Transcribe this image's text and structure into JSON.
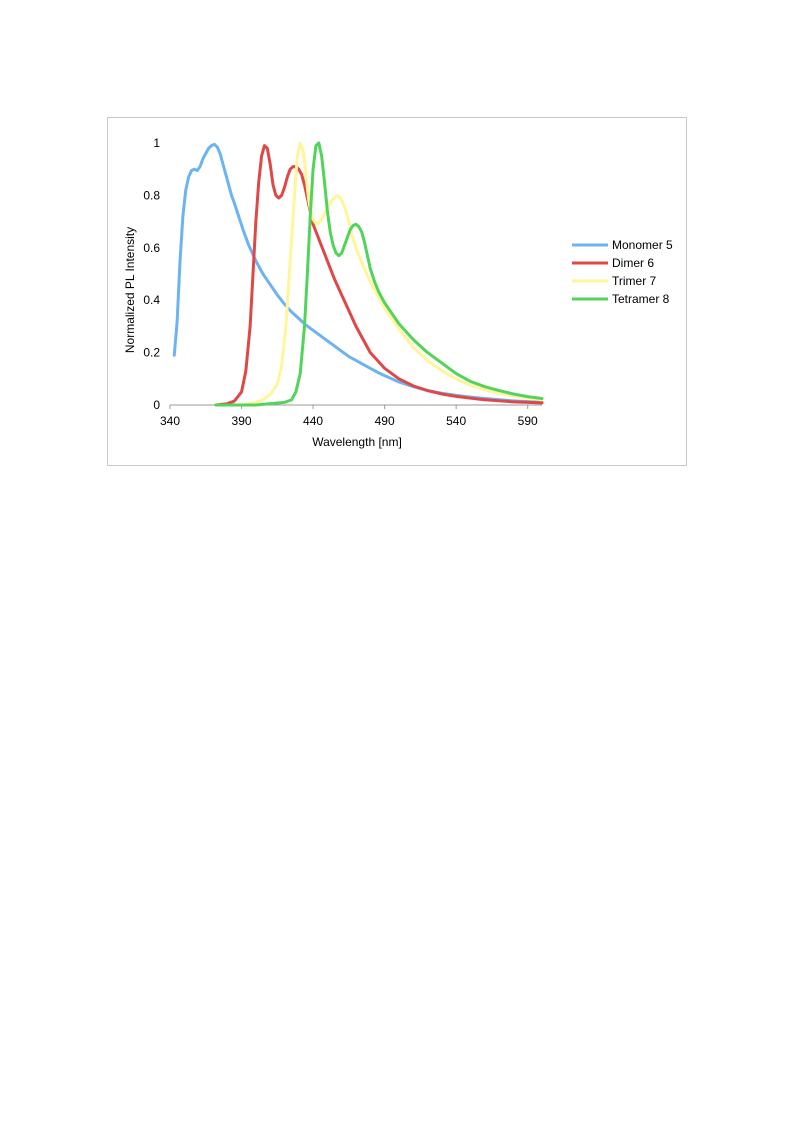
{
  "chart_data": {
    "type": "line",
    "title": "",
    "xlabel": "Wavelength [nm]",
    "ylabel": "Normalized PL Intensity",
    "xlim": [
      340,
      600
    ],
    "ylim": [
      0,
      1
    ],
    "xticks": [
      340,
      390,
      440,
      490,
      540,
      590
    ],
    "yticks": [
      0,
      0.2,
      0.4,
      0.6,
      0.8,
      1
    ],
    "ytick_labels": [
      "0",
      "0.2",
      "0.4",
      "0.6",
      "0.8",
      "1"
    ],
    "grid": false,
    "legend_position": "right",
    "series": [
      {
        "name": "Monomer 5",
        "color": "#6db3f2",
        "x": [
          343,
          345,
          347,
          349,
          351,
          353,
          355,
          357,
          359,
          361,
          363,
          365,
          367,
          369,
          371,
          373,
          375,
          377,
          379,
          381,
          383,
          385,
          388,
          391,
          395,
          400,
          405,
          410,
          415,
          420,
          425,
          430,
          435,
          440,
          445,
          450,
          455,
          460,
          465,
          470,
          475,
          480,
          485,
          490,
          495,
          500,
          510,
          520,
          530,
          540,
          550,
          560,
          570,
          580,
          590,
          600
        ],
        "y": [
          0.19,
          0.32,
          0.55,
          0.72,
          0.82,
          0.87,
          0.895,
          0.9,
          0.895,
          0.91,
          0.94,
          0.96,
          0.98,
          0.99,
          0.995,
          0.985,
          0.96,
          0.92,
          0.88,
          0.84,
          0.8,
          0.77,
          0.72,
          0.67,
          0.61,
          0.55,
          0.5,
          0.46,
          0.42,
          0.385,
          0.355,
          0.33,
          0.305,
          0.285,
          0.265,
          0.245,
          0.225,
          0.205,
          0.185,
          0.17,
          0.155,
          0.14,
          0.125,
          0.112,
          0.1,
          0.088,
          0.07,
          0.055,
          0.045,
          0.037,
          0.03,
          0.025,
          0.02,
          0.016,
          0.013,
          0.01
        ]
      },
      {
        "name": "Dimer 6",
        "color": "#e04848",
        "x": [
          372,
          380,
          385,
          390,
          393,
          396,
          398,
          400,
          402,
          404,
          406,
          408,
          410,
          412,
          414,
          416,
          418,
          420,
          422,
          424,
          426,
          428,
          430,
          432,
          434,
          436,
          438,
          440,
          445,
          450,
          455,
          460,
          465,
          470,
          475,
          480,
          490,
          500,
          510,
          520,
          530,
          540,
          550,
          560,
          570,
          580,
          590,
          600
        ],
        "y": [
          0.0,
          0.005,
          0.015,
          0.05,
          0.13,
          0.3,
          0.5,
          0.7,
          0.85,
          0.95,
          0.99,
          0.98,
          0.92,
          0.84,
          0.8,
          0.79,
          0.8,
          0.83,
          0.87,
          0.9,
          0.91,
          0.91,
          0.9,
          0.88,
          0.84,
          0.79,
          0.74,
          0.69,
          0.62,
          0.55,
          0.48,
          0.42,
          0.36,
          0.3,
          0.25,
          0.2,
          0.14,
          0.1,
          0.073,
          0.055,
          0.042,
          0.033,
          0.026,
          0.02,
          0.016,
          0.012,
          0.01,
          0.008
        ]
      },
      {
        "name": "Trimer 7",
        "color": "#fff59a",
        "x": [
          372,
          390,
          400,
          405,
          410,
          415,
          418,
          421,
          424,
          427,
          429,
          431,
          433,
          435,
          437,
          439,
          441,
          443,
          445,
          447,
          449,
          451,
          453,
          455,
          457,
          459,
          461,
          463,
          465,
          467,
          470,
          475,
          480,
          485,
          490,
          500,
          510,
          520,
          530,
          540,
          550,
          560,
          570,
          580,
          590,
          600
        ],
        "y": [
          0.0,
          0.0,
          0.01,
          0.02,
          0.04,
          0.08,
          0.15,
          0.3,
          0.55,
          0.8,
          0.95,
          1.0,
          0.97,
          0.88,
          0.78,
          0.72,
          0.7,
          0.69,
          0.7,
          0.72,
          0.74,
          0.76,
          0.78,
          0.79,
          0.8,
          0.79,
          0.77,
          0.74,
          0.7,
          0.65,
          0.6,
          0.53,
          0.47,
          0.42,
          0.37,
          0.29,
          0.22,
          0.17,
          0.13,
          0.1,
          0.075,
          0.058,
          0.045,
          0.035,
          0.027,
          0.02
        ]
      },
      {
        "name": "Tetramer 8",
        "color": "#52d45a",
        "x": [
          372,
          400,
          420,
          425,
          428,
          431,
          434,
          436,
          438,
          440,
          442,
          444,
          446,
          448,
          450,
          452,
          454,
          456,
          458,
          460,
          462,
          464,
          466,
          468,
          470,
          472,
          474,
          476,
          478,
          480,
          483,
          486,
          490,
          495,
          500,
          510,
          520,
          530,
          540,
          550,
          560,
          570,
          580,
          590,
          600
        ],
        "y": [
          0.0,
          0.0,
          0.01,
          0.02,
          0.05,
          0.12,
          0.3,
          0.5,
          0.72,
          0.9,
          0.99,
          1.0,
          0.95,
          0.85,
          0.74,
          0.66,
          0.61,
          0.58,
          0.57,
          0.58,
          0.61,
          0.64,
          0.67,
          0.685,
          0.69,
          0.68,
          0.66,
          0.62,
          0.57,
          0.52,
          0.47,
          0.43,
          0.39,
          0.35,
          0.31,
          0.25,
          0.2,
          0.16,
          0.12,
          0.09,
          0.07,
          0.055,
          0.042,
          0.032,
          0.025
        ]
      }
    ]
  }
}
